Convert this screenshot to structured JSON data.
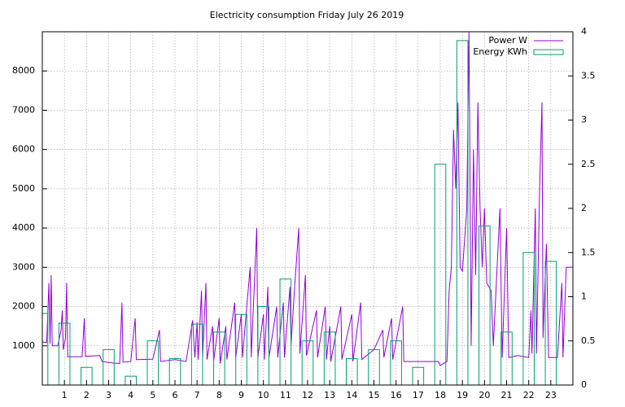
{
  "chart_data": {
    "type": "line",
    "title": "Electricity consumption Friday July 26 2019",
    "xlim": [
      0,
      24
    ],
    "xticks": [
      1,
      2,
      3,
      4,
      5,
      6,
      7,
      8,
      9,
      10,
      11,
      12,
      13,
      14,
      15,
      16,
      17,
      18,
      19,
      20,
      21,
      22,
      23
    ],
    "ylim": [
      0,
      9000
    ],
    "yticks": [
      1000,
      2000,
      3000,
      4000,
      5000,
      6000,
      7000,
      8000
    ],
    "y2lim": [
      0,
      4
    ],
    "y2ticks": [
      0,
      0.5,
      1,
      1.5,
      2,
      2.5,
      3,
      3.5,
      4
    ],
    "grid": true,
    "legend": "top-right",
    "series": [
      {
        "name": "Power W",
        "color": "#9400d3",
        "type": "line",
        "x": [
          0,
          0.2,
          0.3,
          0.35,
          0.4,
          0.45,
          0.7,
          0.85,
          0.9,
          0.95,
          1.05,
          1.1,
          1.15,
          1.8,
          1.9,
          1.95,
          2.6,
          2.7,
          3.2,
          3.5,
          3.6,
          3.65,
          4.0,
          4.2,
          4.25,
          5.0,
          5.3,
          5.35,
          6.0,
          6.5,
          6.8,
          6.9,
          7.0,
          7.05,
          7.2,
          7.25,
          7.4,
          7.45,
          7.7,
          7.75,
          8.0,
          8.05,
          8.3,
          8.35,
          8.7,
          8.75,
          9.0,
          9.05,
          9.4,
          9.45,
          9.7,
          9.75,
          10.0,
          10.05,
          10.2,
          10.25,
          10.6,
          10.65,
          10.9,
          10.95,
          11.2,
          11.25,
          11.4,
          11.6,
          11.65,
          11.9,
          11.95,
          12.4,
          12.45,
          12.8,
          12.85,
          13.0,
          13.05,
          13.5,
          13.55,
          14.0,
          14.05,
          14.4,
          14.45,
          15.0,
          15.4,
          15.45,
          15.8,
          15.85,
          16.3,
          16.35,
          17.0,
          17.9,
          18.0,
          18.3,
          18.4,
          18.5,
          18.6,
          18.7,
          18.8,
          18.9,
          19.0,
          19.2,
          19.3,
          19.4,
          19.5,
          19.6,
          19.7,
          19.8,
          19.9,
          20.0,
          20.1,
          20.3,
          20.4,
          20.7,
          20.8,
          21.0,
          21.1,
          21.5,
          22.0,
          22.1,
          22.15,
          22.3,
          22.35,
          22.5,
          22.6,
          22.65,
          22.8,
          22.9,
          23.3,
          23.5,
          23.55,
          23.7,
          24.0
        ],
        "values": [
          1100,
          1080,
          2600,
          1050,
          2800,
          1000,
          1000,
          1400,
          1900,
          900,
          1200,
          2600,
          720,
          720,
          1700,
          730,
          750,
          600,
          560,
          550,
          2100,
          580,
          600,
          1700,
          650,
          660,
          1400,
          600,
          650,
          600,
          1650,
          700,
          1600,
          650,
          2400,
          700,
          2600,
          650,
          1500,
          600,
          1700,
          550,
          1500,
          650,
          2100,
          700,
          1800,
          700,
          3000,
          700,
          4000,
          700,
          1800,
          650,
          2500,
          700,
          2000,
          700,
          2100,
          700,
          2500,
          1000,
          2400,
          4000,
          800,
          2800,
          750,
          1900,
          700,
          2000,
          650,
          1500,
          600,
          2000,
          650,
          1800,
          600,
          2100,
          650,
          900,
          1400,
          700,
          1700,
          650,
          2000,
          600,
          600,
          600,
          500,
          600,
          2400,
          3000,
          6500,
          5000,
          7200,
          3000,
          2900,
          4500,
          9000,
          1000,
          6000,
          2800,
          7200,
          4500,
          3000,
          4500,
          2600,
          2400,
          1000,
          4500,
          700,
          4000,
          700,
          750,
          700,
          1900,
          800,
          4500,
          800,
          5200,
          7200,
          1200,
          3600,
          700,
          700,
          2600,
          700,
          3000,
          3000
        ]
      },
      {
        "name": "Energy KWh",
        "color": "#009e73",
        "type": "bar",
        "axis": "y2",
        "x": [
          0,
          1,
          2,
          3,
          4,
          5,
          6,
          7,
          8,
          9,
          10,
          11,
          12,
          13,
          14,
          15,
          16,
          17,
          18,
          19,
          20,
          21,
          22,
          23
        ],
        "values": [
          0.81,
          0.7,
          0.2,
          0.4,
          0.1,
          0.5,
          0.3,
          0.69,
          0.6,
          0.8,
          0.89,
          1.2,
          0.5,
          0.6,
          0.3,
          0.4,
          0.5,
          0.2,
          2.5,
          3.9,
          1.8,
          0.6,
          1.5,
          1.4
        ]
      }
    ]
  }
}
